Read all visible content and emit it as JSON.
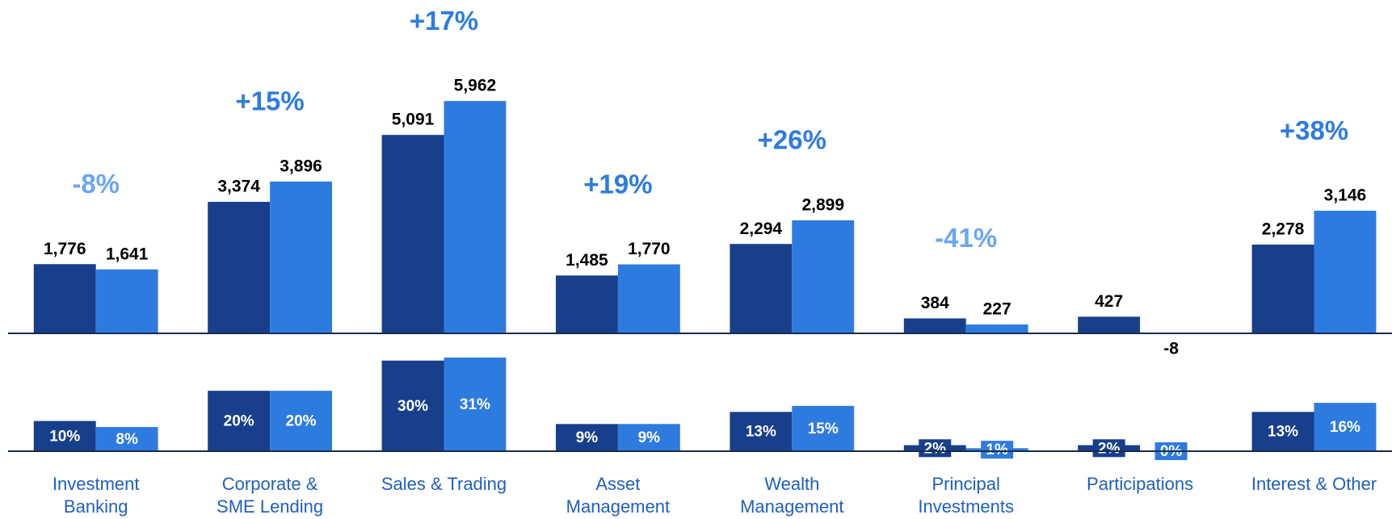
{
  "chart_data": [
    {
      "type": "bar",
      "categories": [
        "Investment\nBanking",
        "Corporate &\nSME Lending",
        "Sales & Trading",
        "Asset\nManagement",
        "Wealth\nManagement",
        "Principal\nInvestments",
        "Participations",
        "Interest & Other"
      ],
      "ylim": [
        0,
        7000
      ],
      "series": [
        {
          "color": "#173f8c",
          "values": [
            1776,
            3374,
            5091,
            1485,
            2294,
            384,
            427,
            2278
          ],
          "value_labels": [
            "1,776",
            "3,374",
            "5,091",
            "1,485",
            "2,294",
            "384",
            "427",
            "2,278"
          ]
        },
        {
          "color": "#2e7be0",
          "values": [
            1641,
            3896,
            5962,
            1770,
            2899,
            227,
            -8,
            3146
          ],
          "value_labels": [
            "1,641",
            "3,896",
            "5,962",
            "1,770",
            "2,899",
            "227",
            "-8",
            "3,146"
          ]
        }
      ],
      "changes": {
        "values": [
          -8,
          15,
          17,
          19,
          26,
          -41,
          null,
          38
        ],
        "value_labels": [
          "-8%",
          "+15%",
          "+17%",
          "+19%",
          "+26%",
          "-41%",
          null,
          "+38%"
        ],
        "positive_color": "#2e7be0",
        "negative_color": "#6aa6f2"
      }
    },
    {
      "type": "bar",
      "ylim": [
        0,
        35
      ],
      "series": [
        {
          "color": "#173f8c",
          "values": [
            10,
            20,
            30,
            9,
            13,
            2,
            2,
            13
          ],
          "value_labels": [
            "10%",
            "20%",
            "30%",
            "9%",
            "13%",
            "2%",
            "2%",
            "13%"
          ]
        },
        {
          "color": "#2e7be0",
          "values": [
            8,
            20,
            31,
            9,
            15,
            1,
            0,
            16
          ],
          "value_labels": [
            "8%",
            "20%",
            "31%",
            "9%",
            "15%",
            "1%",
            "0%",
            "16%"
          ]
        }
      ]
    }
  ]
}
